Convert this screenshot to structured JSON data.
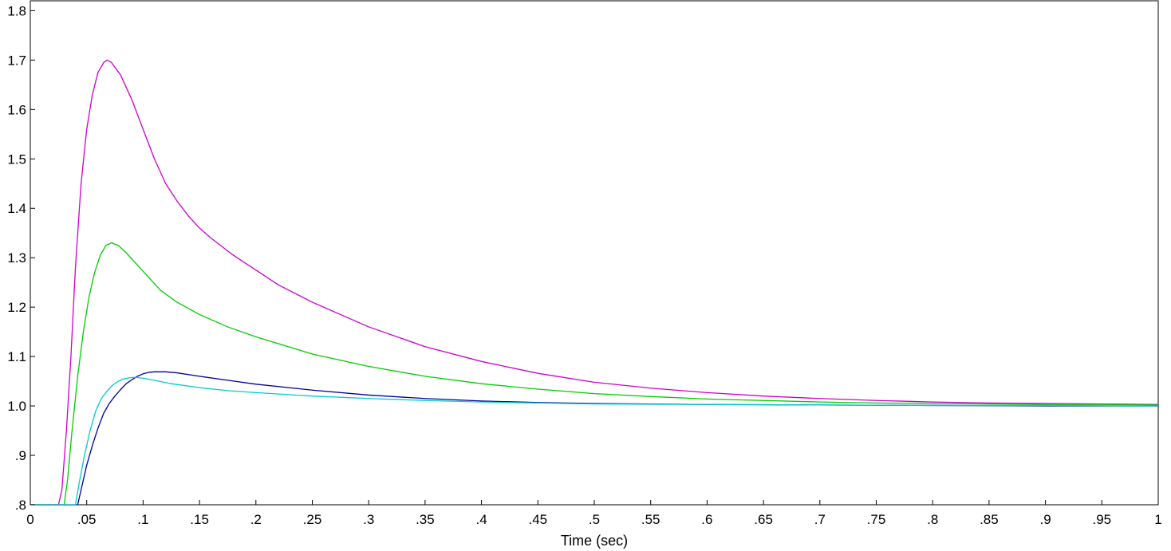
{
  "chart_data": {
    "type": "line",
    "title": "",
    "xlabel": "Time (sec)",
    "ylabel": "",
    "xlim": [
      0,
      1
    ],
    "ylim": [
      0.8,
      1.82
    ],
    "grid": false,
    "legend": "none",
    "x_ticks": [
      {
        "value": 0,
        "label": "0"
      },
      {
        "value": 0.05,
        "label": ".05"
      },
      {
        "value": 0.1,
        "label": ".1"
      },
      {
        "value": 0.15,
        "label": ".15"
      },
      {
        "value": 0.2,
        "label": ".2"
      },
      {
        "value": 0.25,
        "label": ".25"
      },
      {
        "value": 0.3,
        "label": ".3"
      },
      {
        "value": 0.35,
        "label": ".35"
      },
      {
        "value": 0.4,
        "label": ".4"
      },
      {
        "value": 0.45,
        "label": ".45"
      },
      {
        "value": 0.5,
        "label": ".5"
      },
      {
        "value": 0.55,
        "label": ".55"
      },
      {
        "value": 0.6,
        "label": ".6"
      },
      {
        "value": 0.65,
        "label": ".65"
      },
      {
        "value": 0.7,
        "label": ".7"
      },
      {
        "value": 0.75,
        "label": ".75"
      },
      {
        "value": 0.8,
        "label": ".8"
      },
      {
        "value": 0.85,
        "label": ".85"
      },
      {
        "value": 0.9,
        "label": ".9"
      },
      {
        "value": 0.95,
        "label": ".95"
      },
      {
        "value": 1,
        "label": "1"
      }
    ],
    "y_ticks": [
      {
        "value": 0.8,
        "label": ".8"
      },
      {
        "value": 0.9,
        "label": ".9"
      },
      {
        "value": 1.0,
        "label": "1.0"
      },
      {
        "value": 1.1,
        "label": "1.1"
      },
      {
        "value": 1.2,
        "label": "1.2"
      },
      {
        "value": 1.3,
        "label": "1.3"
      },
      {
        "value": 1.4,
        "label": "1.4"
      },
      {
        "value": 1.5,
        "label": "1.5"
      },
      {
        "value": 1.6,
        "label": "1.6"
      },
      {
        "value": 1.7,
        "label": "1.7"
      },
      {
        "value": 1.8,
        "label": "1.8"
      }
    ],
    "series": [
      {
        "color": "#cc00cc",
        "points": [
          [
            0,
            0.8
          ],
          [
            0.025,
            0.8
          ],
          [
            0.028,
            0.83
          ],
          [
            0.032,
            0.95
          ],
          [
            0.036,
            1.1
          ],
          [
            0.04,
            1.28
          ],
          [
            0.045,
            1.45
          ],
          [
            0.05,
            1.56
          ],
          [
            0.055,
            1.63
          ],
          [
            0.06,
            1.675
          ],
          [
            0.065,
            1.695
          ],
          [
            0.068,
            1.7
          ],
          [
            0.072,
            1.695
          ],
          [
            0.08,
            1.67
          ],
          [
            0.09,
            1.62
          ],
          [
            0.1,
            1.56
          ],
          [
            0.11,
            1.5
          ],
          [
            0.12,
            1.45
          ],
          [
            0.13,
            1.415
          ],
          [
            0.14,
            1.385
          ],
          [
            0.15,
            1.36
          ],
          [
            0.16,
            1.34
          ],
          [
            0.18,
            1.305
          ],
          [
            0.2,
            1.275
          ],
          [
            0.22,
            1.245
          ],
          [
            0.25,
            1.21
          ],
          [
            0.3,
            1.16
          ],
          [
            0.35,
            1.12
          ],
          [
            0.4,
            1.09
          ],
          [
            0.45,
            1.066
          ],
          [
            0.5,
            1.048
          ],
          [
            0.55,
            1.036
          ],
          [
            0.6,
            1.027
          ],
          [
            0.65,
            1.02
          ],
          [
            0.7,
            1.015
          ],
          [
            0.75,
            1.011
          ],
          [
            0.8,
            1.008
          ],
          [
            0.85,
            1.006
          ],
          [
            0.9,
            1.005
          ],
          [
            0.95,
            1.004
          ],
          [
            1,
            1.003
          ]
        ]
      },
      {
        "color": "#00cc00",
        "points": [
          [
            0,
            0.8
          ],
          [
            0.03,
            0.8
          ],
          [
            0.033,
            0.85
          ],
          [
            0.037,
            0.95
          ],
          [
            0.042,
            1.06
          ],
          [
            0.047,
            1.15
          ],
          [
            0.052,
            1.22
          ],
          [
            0.057,
            1.27
          ],
          [
            0.062,
            1.305
          ],
          [
            0.067,
            1.325
          ],
          [
            0.072,
            1.33
          ],
          [
            0.078,
            1.325
          ],
          [
            0.085,
            1.31
          ],
          [
            0.095,
            1.285
          ],
          [
            0.105,
            1.26
          ],
          [
            0.115,
            1.235
          ],
          [
            0.13,
            1.21
          ],
          [
            0.15,
            1.185
          ],
          [
            0.175,
            1.16
          ],
          [
            0.2,
            1.14
          ],
          [
            0.25,
            1.105
          ],
          [
            0.3,
            1.08
          ],
          [
            0.35,
            1.06
          ],
          [
            0.4,
            1.045
          ],
          [
            0.45,
            1.034
          ],
          [
            0.5,
            1.025
          ],
          [
            0.55,
            1.019
          ],
          [
            0.6,
            1.014
          ],
          [
            0.65,
            1.011
          ],
          [
            0.7,
            1.008
          ],
          [
            0.75,
            1.006
          ],
          [
            0.8,
            1.005
          ],
          [
            0.85,
            1.004
          ],
          [
            0.9,
            1.003
          ],
          [
            0.95,
            1.003
          ],
          [
            1,
            1.002
          ]
        ]
      },
      {
        "color": "#000099",
        "points": [
          [
            0,
            0.8
          ],
          [
            0.042,
            0.8
          ],
          [
            0.045,
            0.83
          ],
          [
            0.05,
            0.88
          ],
          [
            0.055,
            0.92
          ],
          [
            0.06,
            0.955
          ],
          [
            0.065,
            0.985
          ],
          [
            0.07,
            1.005
          ],
          [
            0.075,
            1.02
          ],
          [
            0.08,
            1.033
          ],
          [
            0.085,
            1.045
          ],
          [
            0.09,
            1.053
          ],
          [
            0.095,
            1.06
          ],
          [
            0.1,
            1.065
          ],
          [
            0.105,
            1.068
          ],
          [
            0.11,
            1.069
          ],
          [
            0.12,
            1.069
          ],
          [
            0.13,
            1.067
          ],
          [
            0.15,
            1.06
          ],
          [
            0.175,
            1.052
          ],
          [
            0.2,
            1.044
          ],
          [
            0.25,
            1.032
          ],
          [
            0.3,
            1.022
          ],
          [
            0.35,
            1.015
          ],
          [
            0.4,
            1.01
          ],
          [
            0.45,
            1.007
          ],
          [
            0.5,
            1.005
          ],
          [
            0.6,
            1.003
          ],
          [
            0.7,
            1.002
          ],
          [
            0.8,
            1.001
          ],
          [
            0.9,
            1.0
          ],
          [
            1,
            1.0
          ]
        ]
      },
      {
        "color": "#00cccc",
        "points": [
          [
            0,
            0.8
          ],
          [
            0.04,
            0.8
          ],
          [
            0.043,
            0.84
          ],
          [
            0.048,
            0.9
          ],
          [
            0.053,
            0.95
          ],
          [
            0.058,
            0.99
          ],
          [
            0.063,
            1.015
          ],
          [
            0.068,
            1.03
          ],
          [
            0.073,
            1.042
          ],
          [
            0.078,
            1.05
          ],
          [
            0.083,
            1.055
          ],
          [
            0.088,
            1.057
          ],
          [
            0.093,
            1.058
          ],
          [
            0.1,
            1.056
          ],
          [
            0.11,
            1.052
          ],
          [
            0.125,
            1.045
          ],
          [
            0.15,
            1.037
          ],
          [
            0.175,
            1.031
          ],
          [
            0.2,
            1.027
          ],
          [
            0.25,
            1.02
          ],
          [
            0.3,
            1.015
          ],
          [
            0.35,
            1.011
          ],
          [
            0.4,
            1.008
          ],
          [
            0.45,
            1.006
          ],
          [
            0.5,
            1.004
          ],
          [
            0.6,
            1.003
          ],
          [
            0.7,
            1.002
          ],
          [
            0.8,
            1.001
          ],
          [
            0.9,
            1.001
          ],
          [
            1,
            1.0
          ]
        ]
      }
    ]
  }
}
